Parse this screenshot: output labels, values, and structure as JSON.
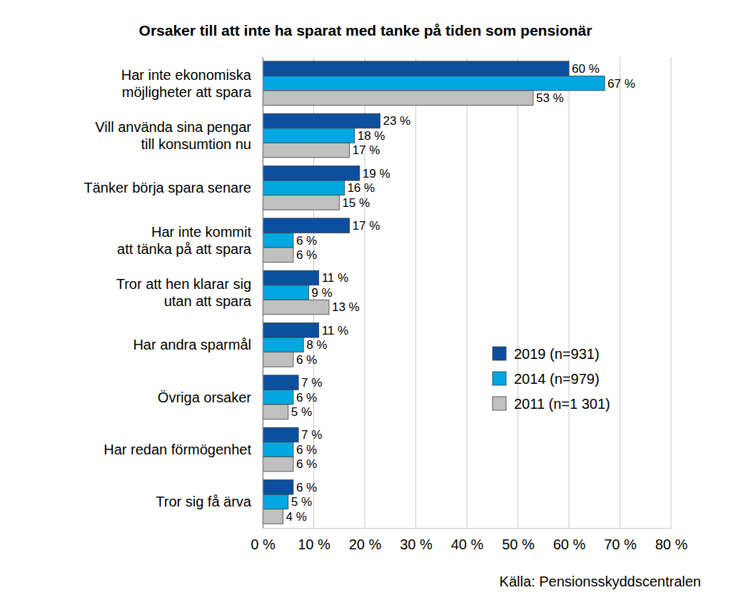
{
  "chart_data": {
    "type": "bar",
    "title": "Orsaker till att inte ha sparat med tanke på tiden som pensionär",
    "source": "Källa: Pensionsskyddscentralen",
    "orientation": "horizontal",
    "categories": [
      "Har inte ekonomiska\nmöjligheter att spara",
      "Vill använda sina pengar\ntill konsumtion nu",
      "Tänker börja spara senare",
      "Har inte kommit\natt tänka på att spara",
      "Tror att hen klarar sig\nutan att spara",
      "Har andra sparmål",
      "Övriga orsaker",
      "Har redan förmögenhet",
      "Tror sig få ärva"
    ],
    "series": [
      {
        "name": "2019 (n=931)",
        "color": "#0d4f9f",
        "values": [
          60,
          23,
          19,
          17,
          11,
          11,
          7,
          7,
          6
        ],
        "value_labels": [
          "60 %",
          "23 %",
          "19 %",
          "17 %",
          "11 %",
          "11 %",
          "7 %",
          "7 %",
          "6 %"
        ]
      },
      {
        "name": "2014 (n=979)",
        "color": "#00a7e1",
        "values": [
          67,
          18,
          16,
          6,
          9,
          8,
          6,
          6,
          5
        ],
        "value_labels": [
          "67 %",
          "18 %",
          "16 %",
          "6 %",
          "9 %",
          "8 %",
          "6 %",
          "6 %",
          "5 %"
        ]
      },
      {
        "name": "2011 (n=1 301)",
        "color": "#c0c0c0",
        "values": [
          53,
          17,
          15,
          6,
          13,
          6,
          5,
          6,
          4
        ],
        "value_labels": [
          "53 %",
          "17 %",
          "15 %",
          "6 %",
          "13 %",
          "6 %",
          "5 %",
          "6 %",
          "4 %"
        ]
      }
    ],
    "xlim": [
      0,
      80
    ],
    "xticks": [
      {
        "value": 0,
        "label": "0 %"
      },
      {
        "value": 10,
        "label": "10 %"
      },
      {
        "value": 20,
        "label": "20 %"
      },
      {
        "value": 30,
        "label": "30 %"
      },
      {
        "value": 40,
        "label": "40 %"
      },
      {
        "value": 50,
        "label": "50 %"
      },
      {
        "value": 60,
        "label": "60 %"
      },
      {
        "value": 70,
        "label": "70 %"
      },
      {
        "value": 80,
        "label": "80 %"
      }
    ],
    "grid": true,
    "legend": "right",
    "data_labels": true
  }
}
